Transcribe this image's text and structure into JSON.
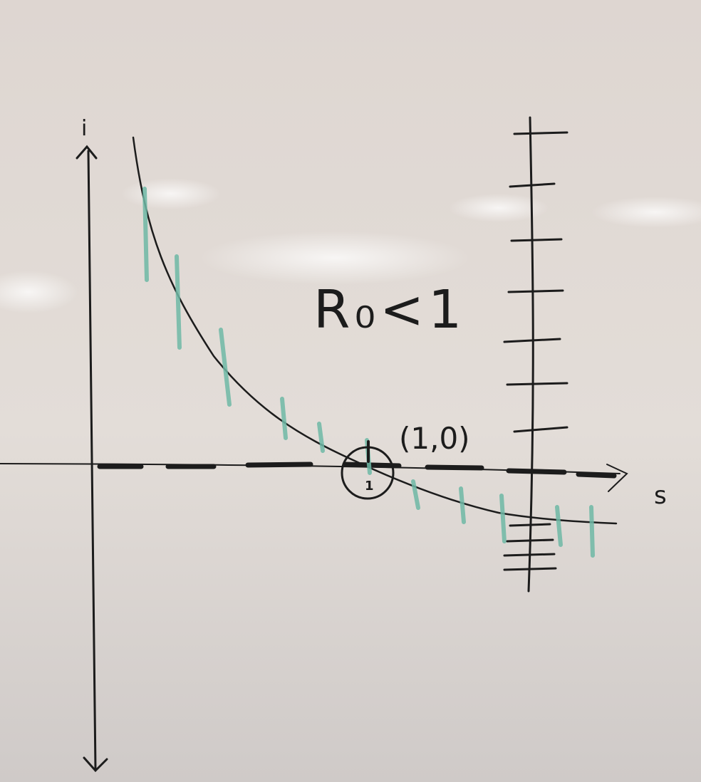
{
  "labels": {
    "i_axis": "i",
    "s_axis": "s",
    "r0_condition": "R₀<1",
    "equilibrium_point": "(1,0)",
    "s_one_tick": "1"
  },
  "colors": {
    "board": "#d9d2cd",
    "ink_black": "#1c1c1c",
    "ink_teal": "#6fb9a6"
  },
  "icons": {
    "equilibrium_marker": "circle-icon"
  }
}
